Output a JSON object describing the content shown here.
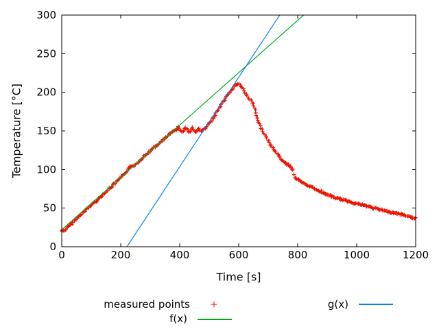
{
  "chart_data": {
    "type": "scatter",
    "title": "",
    "xlabel": "Time [s]",
    "ylabel": "Temperature [°C]",
    "xlim": [
      0,
      1200
    ],
    "ylim": [
      0,
      300
    ],
    "xticks": [
      0,
      200,
      400,
      600,
      800,
      1000,
      1200
    ],
    "yticks": [
      0,
      50,
      100,
      150,
      200,
      250,
      300
    ],
    "grid": false,
    "tick_style": "inward, mirrored on top and right borders",
    "legend_position": "centered below plot, two columns",
    "series": [
      {
        "name": "measured points",
        "type": "scatter",
        "marker": "plus",
        "color": "#ee1100",
        "points": [
          [
            0,
            20.5
          ],
          [
            12,
            21.5
          ],
          [
            25,
            27
          ],
          [
            50,
            36
          ],
          [
            75,
            45
          ],
          [
            100,
            54
          ],
          [
            125,
            62
          ],
          [
            150,
            71
          ],
          [
            175,
            80
          ],
          [
            200,
            89
          ],
          [
            215,
            95
          ],
          [
            230,
            103
          ],
          [
            245,
            105
          ],
          [
            260,
            110
          ],
          [
            275,
            116
          ],
          [
            300,
            124
          ],
          [
            325,
            132
          ],
          [
            350,
            140
          ],
          [
            370,
            147
          ],
          [
            388,
            152
          ],
          [
            396,
            155
          ],
          [
            408,
            148
          ],
          [
            420,
            155
          ],
          [
            432,
            148
          ],
          [
            444,
            154
          ],
          [
            456,
            148
          ],
          [
            466,
            153
          ],
          [
            474,
            149
          ],
          [
            482,
            152
          ],
          [
            490,
            154
          ],
          [
            505,
            162
          ],
          [
            520,
            171
          ],
          [
            535,
            180
          ],
          [
            550,
            189
          ],
          [
            565,
            197
          ],
          [
            578,
            204
          ],
          [
            588,
            209
          ],
          [
            598,
            211
          ],
          [
            605,
            210
          ],
          [
            612,
            206
          ],
          [
            622,
            199
          ],
          [
            632,
            194
          ],
          [
            642,
            189
          ],
          [
            648,
            185
          ],
          [
            653,
            180
          ],
          [
            658,
            174
          ],
          [
            663,
            167
          ],
          [
            668,
            161
          ],
          [
            674,
            156
          ],
          [
            682,
            150
          ],
          [
            692,
            142
          ],
          [
            702,
            136
          ],
          [
            714,
            129
          ],
          [
            726,
            123
          ],
          [
            738,
            116
          ],
          [
            752,
            110
          ],
          [
            766,
            106
          ],
          [
            778,
            103
          ],
          [
            783,
            99
          ],
          [
            786,
            94
          ],
          [
            790,
            90
          ],
          [
            800,
            87
          ],
          [
            815,
            83
          ],
          [
            830,
            80
          ],
          [
            850,
            77
          ],
          [
            870,
            73
          ],
          [
            890,
            69
          ],
          [
            910,
            66
          ],
          [
            930,
            63
          ],
          [
            950,
            61
          ],
          [
            970,
            59
          ],
          [
            990,
            57
          ],
          [
            1010,
            55
          ],
          [
            1030,
            53
          ],
          [
            1050,
            51
          ],
          [
            1070,
            49
          ],
          [
            1090,
            47
          ],
          [
            1110,
            45
          ],
          [
            1130,
            44
          ],
          [
            1150,
            42
          ],
          [
            1170,
            40
          ],
          [
            1185,
            38
          ],
          [
            1200,
            37
          ]
        ]
      },
      {
        "name": "f(x)",
        "type": "line",
        "color": "#00a81e",
        "description": "linear fit of heating ramp, approx f(x)=0.339x+22",
        "points": [
          [
            0,
            22
          ],
          [
            820,
            300
          ]
        ]
      },
      {
        "name": "g(x)",
        "type": "line",
        "color": "#0b80e8",
        "description": "linear fit of second ramp, approx g(x)=0.579x-128",
        "points": [
          [
            221,
            0
          ],
          [
            739,
            300
          ]
        ]
      }
    ]
  },
  "legend": {
    "measured_label": "measured points",
    "f_label": "f(x)",
    "g_label": "g(x)"
  }
}
